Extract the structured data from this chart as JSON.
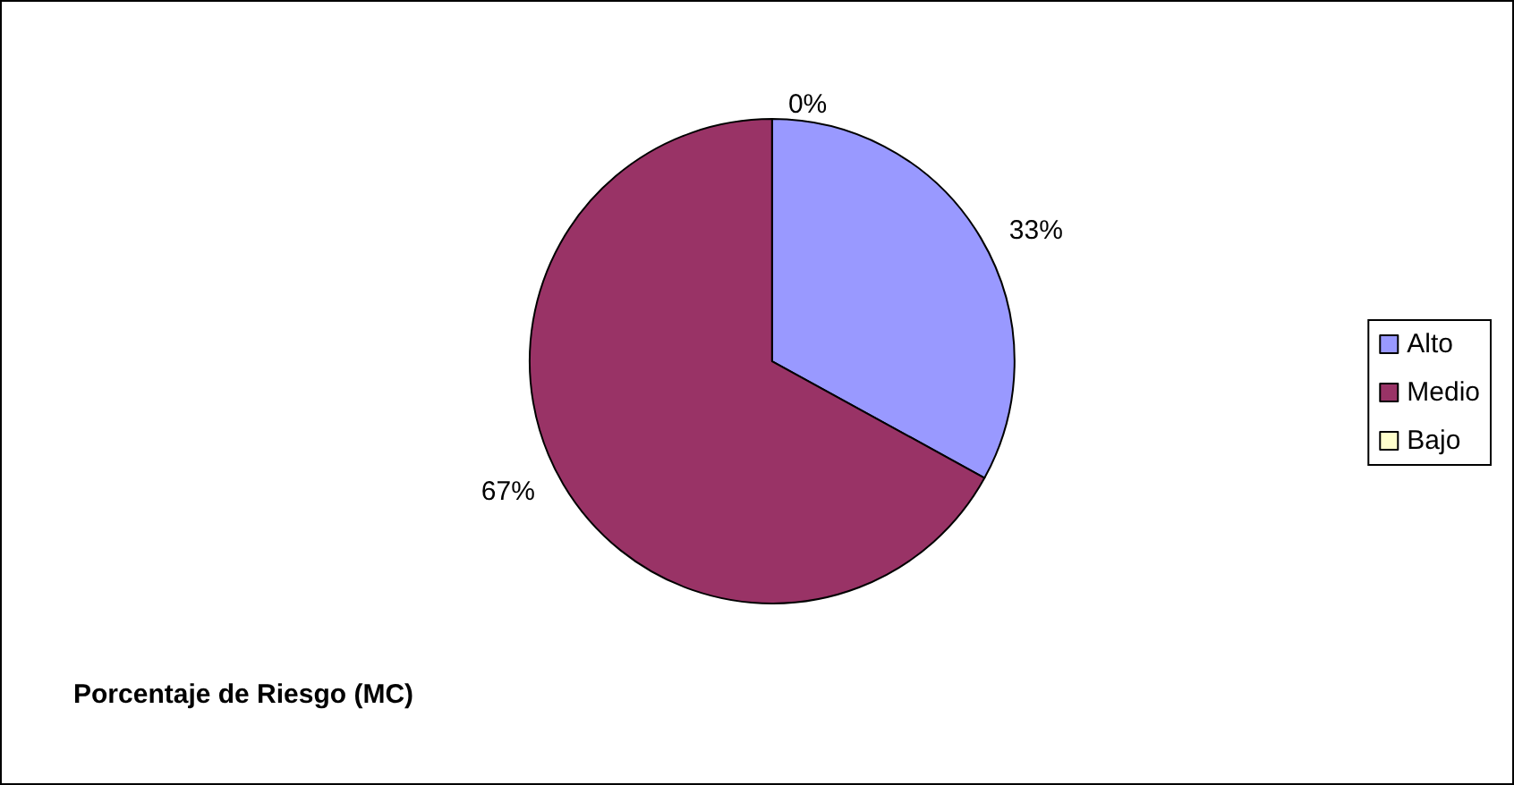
{
  "chart_data": {
    "type": "pie",
    "title": "Porcentaje de Riesgo (MC)",
    "categories": [
      "Alto",
      "Medio",
      "Bajo"
    ],
    "values": [
      33,
      67,
      0
    ],
    "colors": [
      "#9999ff",
      "#993366",
      "#ffffcc"
    ],
    "value_labels": [
      "33%",
      "67%",
      "0%"
    ],
    "legend": "right"
  }
}
